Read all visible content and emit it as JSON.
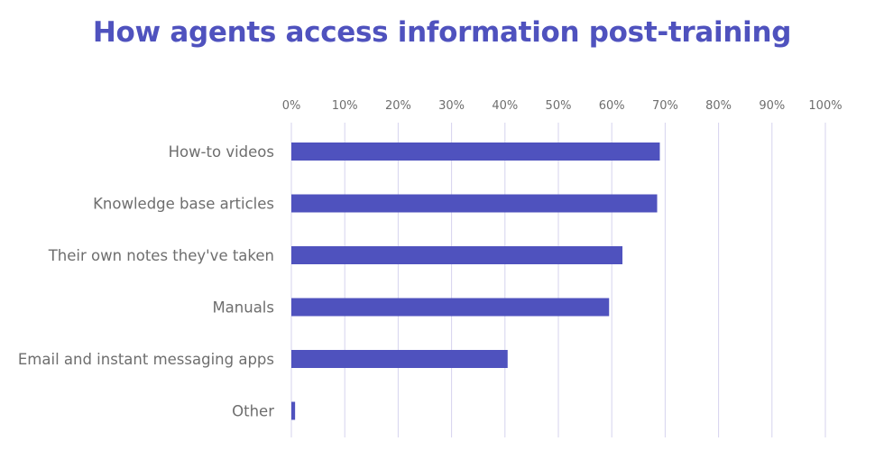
{
  "colors": {
    "title": "#4f52be",
    "bar": "#4f52be",
    "grid": "#d6d3ee",
    "text": "#6e6e6e"
  },
  "chart_data": {
    "type": "bar",
    "orientation": "horizontal",
    "title": "How agents access information post-training",
    "xlabel": "",
    "ylabel": "",
    "x_axis_position": "top",
    "xlim": [
      0,
      100
    ],
    "x_ticks": [
      0,
      10,
      20,
      30,
      40,
      50,
      60,
      70,
      80,
      90,
      100
    ],
    "x_tick_labels": [
      "0%",
      "10%",
      "20%",
      "30%",
      "40%",
      "50%",
      "60%",
      "70%",
      "80%",
      "90%",
      "100%"
    ],
    "grid": true,
    "legend": "none",
    "categories": [
      "How-to videos",
      "Knowledge base articles",
      "Their own notes they've taken",
      "Manuals",
      "Email and instant messaging apps",
      "Other"
    ],
    "values": [
      69,
      68.5,
      62,
      59.5,
      40.5,
      0.7
    ]
  }
}
